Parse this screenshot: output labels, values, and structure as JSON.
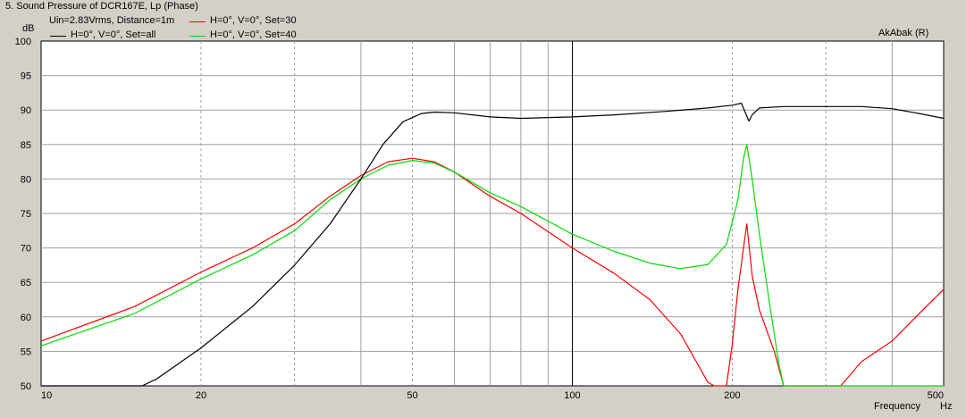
{
  "window": {
    "title": "5. Sound Pressure of DCR167E, Lp (Phase)",
    "brand": "AkAbak (R)"
  },
  "chart_data": {
    "type": "line",
    "title": "5. Sound Pressure of DCR167E, Lp (Phase)",
    "subtitle": "Uin=2.83Vrms, Distance=1m",
    "xlabel": "Frequency",
    "xunit": "Hz",
    "ylabel": "dB",
    "xscale": "log",
    "xlim": [
      10,
      500
    ],
    "ylim": [
      50,
      100
    ],
    "x_tick_labels": [
      "10",
      "20",
      "50",
      "100",
      "200",
      "500"
    ],
    "x_tick_values": [
      10,
      20,
      50,
      100,
      200,
      500
    ],
    "y_tick_labels": [
      "100",
      "95",
      "90",
      "85",
      "80",
      "75",
      "70",
      "65",
      "60",
      "55",
      "50"
    ],
    "y_tick_values": [
      100,
      95,
      90,
      85,
      80,
      75,
      70,
      65,
      60,
      55,
      50
    ],
    "grid": true,
    "legend_placement": "top-left",
    "series": [
      {
        "name": "H=0°, V=0°, Set=all",
        "color": "#000000",
        "points": [
          [
            10,
            50
          ],
          [
            15.5,
            50
          ],
          [
            16.5,
            51
          ],
          [
            20,
            55.5
          ],
          [
            25,
            61.5
          ],
          [
            30,
            67.5
          ],
          [
            35,
            73.5
          ],
          [
            40,
            80
          ],
          [
            44,
            85
          ],
          [
            48,
            88.3
          ],
          [
            52,
            89.5
          ],
          [
            55,
            89.7
          ],
          [
            60,
            89.6
          ],
          [
            70,
            89
          ],
          [
            80,
            88.8
          ],
          [
            100,
            89
          ],
          [
            120,
            89.3
          ],
          [
            150,
            89.8
          ],
          [
            180,
            90.3
          ],
          [
            200,
            90.7
          ],
          [
            208,
            91
          ],
          [
            212,
            89.5
          ],
          [
            215,
            88.4
          ],
          [
            218,
            89.3
          ],
          [
            225,
            90.3
          ],
          [
            250,
            90.5
          ],
          [
            300,
            90.5
          ],
          [
            350,
            90.5
          ],
          [
            400,
            90.2
          ],
          [
            450,
            89.5
          ],
          [
            500,
            88.8
          ]
        ]
      },
      {
        "name": "H=0°, V=0°, Set=30",
        "color": "#ff0000",
        "points": [
          [
            10,
            56.5
          ],
          [
            15,
            61.5
          ],
          [
            20,
            66.5
          ],
          [
            25,
            70
          ],
          [
            30,
            73.5
          ],
          [
            35,
            77.5
          ],
          [
            40,
            80.5
          ],
          [
            45,
            82.5
          ],
          [
            50,
            83
          ],
          [
            55,
            82.5
          ],
          [
            60,
            81
          ],
          [
            70,
            77.5
          ],
          [
            80,
            75
          ],
          [
            100,
            70
          ],
          [
            120,
            66.3
          ],
          [
            140,
            62.5
          ],
          [
            160,
            57.5
          ],
          [
            180,
            50.5
          ],
          [
            185,
            50
          ],
          [
            195,
            50
          ],
          [
            200,
            56
          ],
          [
            205,
            64
          ],
          [
            210,
            70
          ],
          [
            213,
            73.5
          ],
          [
            218,
            66
          ],
          [
            225,
            61
          ],
          [
            240,
            55
          ],
          [
            250,
            50
          ],
          [
            320,
            50
          ],
          [
            350,
            53.5
          ],
          [
            400,
            56.5
          ],
          [
            450,
            60.5
          ],
          [
            500,
            64
          ]
        ]
      },
      {
        "name": "H=0°, V=0°, Set=40",
        "color": "#00dd00",
        "points": [
          [
            10,
            55.8
          ],
          [
            15,
            60.5
          ],
          [
            20,
            65.5
          ],
          [
            25,
            69
          ],
          [
            30,
            72.5
          ],
          [
            35,
            77
          ],
          [
            40,
            80
          ],
          [
            45,
            82
          ],
          [
            50,
            82.7
          ],
          [
            55,
            82.3
          ],
          [
            60,
            81
          ],
          [
            70,
            78
          ],
          [
            80,
            76
          ],
          [
            100,
            72
          ],
          [
            120,
            69.5
          ],
          [
            140,
            67.8
          ],
          [
            160,
            67
          ],
          [
            180,
            67.6
          ],
          [
            195,
            70.5
          ],
          [
            205,
            77
          ],
          [
            210,
            83
          ],
          [
            213,
            85
          ],
          [
            218,
            80
          ],
          [
            225,
            72
          ],
          [
            235,
            62
          ],
          [
            245,
            53
          ],
          [
            250,
            50
          ],
          [
            500,
            50
          ]
        ]
      }
    ]
  }
}
